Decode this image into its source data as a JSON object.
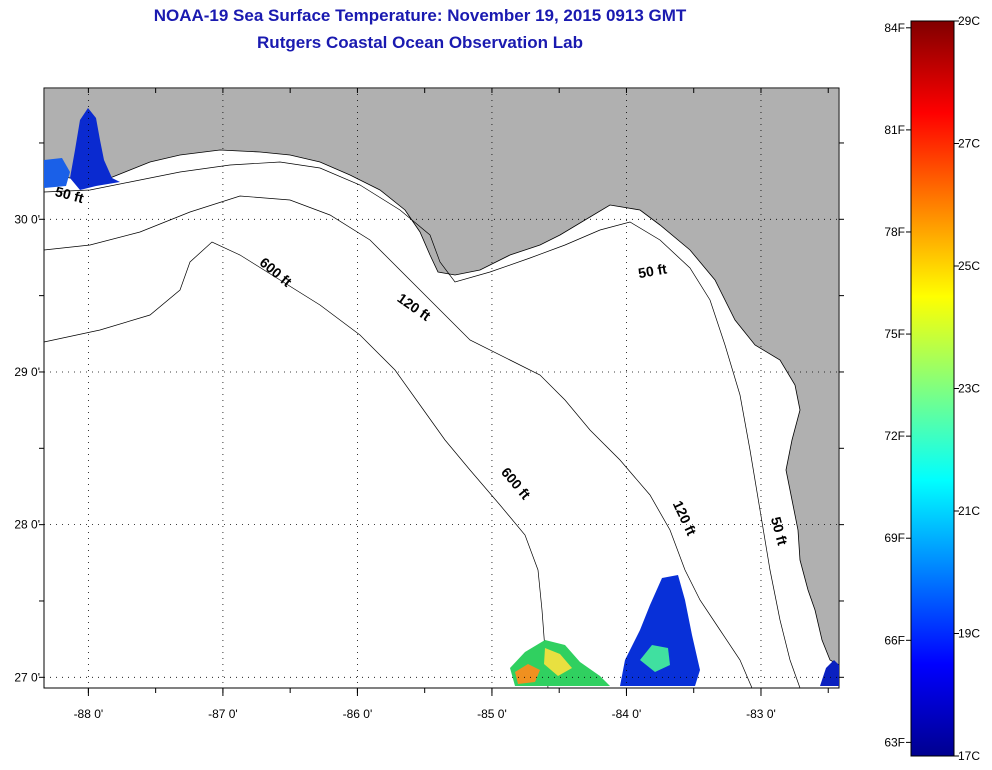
{
  "title": {
    "line1": "NOAA-19 Sea Surface Temperature:  November 19, 2015 0913 GMT",
    "line2": "Rutgers Coastal Ocean Observation Lab"
  },
  "map": {
    "lon_range": [
      -88.33,
      -82.42
    ],
    "lat_range": [
      26.93,
      30.86
    ],
    "lon_ticks": [
      {
        "value": -88,
        "label": "-88 0'"
      },
      {
        "value": -87,
        "label": "-87 0'"
      },
      {
        "value": -86,
        "label": "-86 0'"
      },
      {
        "value": -85,
        "label": "-85 0'"
      },
      {
        "value": -84,
        "label": "-84 0'"
      },
      {
        "value": -83,
        "label": "-83 0'"
      }
    ],
    "lat_ticks": [
      {
        "value": 30,
        "label": "30 0'"
      },
      {
        "value": 29,
        "label": "29 0'"
      },
      {
        "value": 28,
        "label": "28 0'"
      },
      {
        "value": 27,
        "label": "27 0'"
      }
    ],
    "land_color": "#b0b0b0",
    "water_color": "#ffffff",
    "contours": [
      {
        "depth": "50 ft",
        "labels": [
          {
            "text": "50 ft",
            "lon": -88.15,
            "lat": 30.13,
            "angle": 15
          },
          {
            "text": "50 ft",
            "lon": -83.8,
            "lat": 29.63,
            "angle": -10
          },
          {
            "text": "50 ft",
            "lon": -82.9,
            "lat": 27.95,
            "angle": 75
          }
        ]
      },
      {
        "depth": "120 ft",
        "labels": [
          {
            "text": "120 ft",
            "lon": -85.6,
            "lat": 29.4,
            "angle": 35
          },
          {
            "text": "120 ft",
            "lon": -83.6,
            "lat": 28.03,
            "angle": 65
          }
        ]
      },
      {
        "depth": "600 ft",
        "labels": [
          {
            "text": "600 ft",
            "lon": -86.63,
            "lat": 29.63,
            "angle": 40
          },
          {
            "text": "600 ft",
            "lon": -84.85,
            "lat": 28.25,
            "angle": 50
          }
        ]
      }
    ]
  },
  "colorbar": {
    "colors": [
      "#00008f",
      "#0000ff",
      "#0080ff",
      "#00ffff",
      "#80ff80",
      "#ffff00",
      "#ff8000",
      "#ff0000",
      "#800000"
    ],
    "fahrenheit_labels": [
      "84F",
      "81F",
      "78F",
      "75F",
      "72F",
      "69F",
      "66F",
      "63F"
    ],
    "celsius_labels": [
      "29C",
      "27C",
      "25C",
      "23C",
      "21C",
      "19C",
      "17C"
    ],
    "f_values": [
      84,
      81,
      78,
      75,
      72,
      69,
      66,
      63
    ],
    "c_values": [
      29,
      27,
      25,
      23,
      21,
      19,
      17
    ],
    "c_min": 17,
    "c_max": 29
  },
  "sst_patches": [
    {
      "region": "mobile-bay",
      "color": "#0a2ad0"
    },
    {
      "region": "south-west",
      "color": "#30d060"
    },
    {
      "region": "south-east",
      "color": "#0830d8"
    }
  ]
}
